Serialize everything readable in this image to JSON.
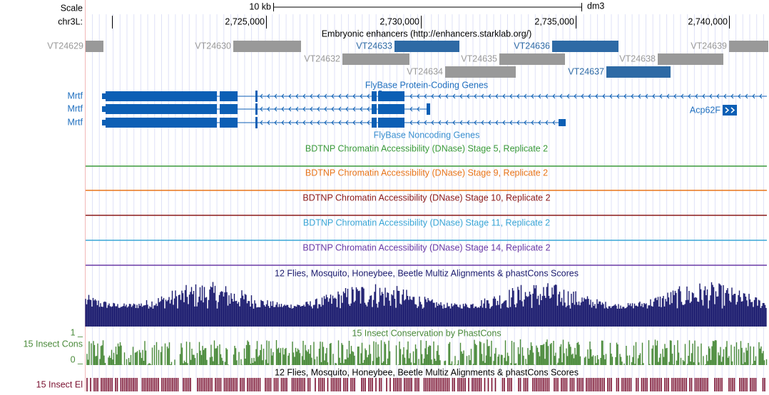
{
  "ruler": {
    "scale_label": "Scale",
    "scale_bar": "10 kb",
    "assembly": "dm3",
    "chrom": "chr3L:",
    "positions": [
      "2,725,000",
      "2,730,000",
      "2,735,000",
      "2,740,000"
    ]
  },
  "enhancers": {
    "title": "Embryonic enhancers (http://enhancers.starklab.org/)",
    "items": [
      "VT24629",
      "VT24630",
      "VT24633",
      "VT24636",
      "VT24639",
      "VT24632",
      "VT24635",
      "VT24638",
      "VT24634",
      "VT24637"
    ]
  },
  "genes": {
    "title": "FlyBase Protein-Coding Genes",
    "transcripts": [
      "Mrtf",
      "Mrtf",
      "Mrtf"
    ],
    "other": "Acp62F"
  },
  "noncoding": {
    "title": "FlyBase Noncoding Genes"
  },
  "dnase": [
    "BDTNP Chromatin Accessibility (DNase) Stage 5, Replicate 2",
    "BDTNP Chromatin Accessibility (DNase) Stage 9, Replicate 2",
    "BDTNP Chromatin Accessibility (DNase) Stage 10, Replicate 2",
    "BDTNP Chromatin Accessibility (DNase) Stage 11, Replicate 2",
    "BDTNP Chromatin Accessibility (DNase) Stage 14, Replicate 2"
  ],
  "multiz": {
    "title": "12 Flies, Mosquito, Honeybee, Beetle Multiz Alignments & phastCons Scores"
  },
  "phastcons": {
    "title": "15 Insect Conservation by PhastCons",
    "side_label": "15 Insect Cons",
    "max_label": "1 _",
    "min_label": "0 _"
  },
  "elements": {
    "title": "12 Flies, Mosquito, Honeybee, Beetle Multiz Alignments & phastCons Scores",
    "side_label": "15 Insect El"
  }
}
